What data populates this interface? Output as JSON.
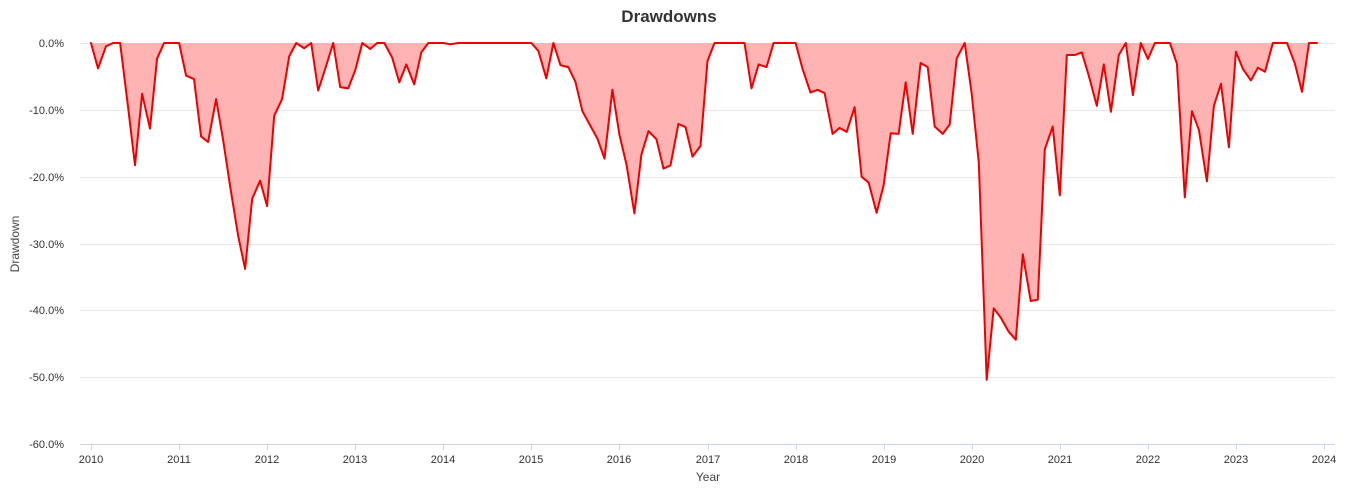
{
  "chart_data": {
    "type": "area",
    "title": "Drawdowns",
    "xlabel": "Year",
    "ylabel": "Drawdown",
    "xlim": [
      2010,
      2024
    ],
    "ylim": [
      -60,
      0
    ],
    "x_ticks": [
      2010,
      2011,
      2012,
      2013,
      2014,
      2015,
      2016,
      2017,
      2018,
      2019,
      2020,
      2021,
      2022,
      2023,
      2024
    ],
    "x_tick_labels": [
      "2010",
      "2011",
      "2012",
      "2013",
      "2014",
      "2015",
      "2016",
      "2017",
      "2018",
      "2019",
      "2020",
      "2021",
      "2022",
      "2023",
      "2024"
    ],
    "y_ticks": [
      0,
      -10,
      -20,
      -30,
      -40,
      -50,
      -60
    ],
    "y_tick_labels": [
      "0.0%",
      "-10.0%",
      "-20.0%",
      "-30.0%",
      "-40.0%",
      "-50.0%",
      "-60.0%"
    ],
    "grid": true,
    "legend": "none",
    "colors": {
      "line": "#ee0000",
      "fill": "#ffb3b3"
    },
    "series": [
      {
        "values": [
          [
            2010.0,
            0.0
          ],
          [
            2010.08,
            -3.8
          ],
          [
            2010.17,
            -0.5
          ],
          [
            2010.25,
            0.0
          ],
          [
            2010.33,
            0.0
          ],
          [
            2010.42,
            -9.5
          ],
          [
            2010.5,
            -18.3
          ],
          [
            2010.58,
            -7.6
          ],
          [
            2010.67,
            -12.8
          ],
          [
            2010.75,
            -2.3
          ],
          [
            2010.83,
            0.0
          ],
          [
            2010.92,
            0.0
          ],
          [
            2011.0,
            0.0
          ],
          [
            2011.08,
            -4.9
          ],
          [
            2011.17,
            -5.4
          ],
          [
            2011.25,
            -14.0
          ],
          [
            2011.33,
            -14.8
          ],
          [
            2011.42,
            -8.4
          ],
          [
            2011.5,
            -14.5
          ],
          [
            2011.58,
            -21.5
          ],
          [
            2011.67,
            -28.8
          ],
          [
            2011.75,
            -33.8
          ],
          [
            2011.83,
            -23.3
          ],
          [
            2011.92,
            -20.6
          ],
          [
            2012.0,
            -24.4
          ],
          [
            2012.08,
            -10.9
          ],
          [
            2012.17,
            -8.4
          ],
          [
            2012.25,
            -2.0
          ],
          [
            2012.33,
            0.0
          ],
          [
            2012.42,
            -0.8
          ],
          [
            2012.5,
            0.0
          ],
          [
            2012.58,
            -7.1
          ],
          [
            2012.67,
            -3.4
          ],
          [
            2012.75,
            0.0
          ],
          [
            2012.83,
            -6.6
          ],
          [
            2012.92,
            -6.8
          ],
          [
            2013.0,
            -4.1
          ],
          [
            2013.08,
            0.0
          ],
          [
            2013.17,
            -0.9
          ],
          [
            2013.25,
            0.0
          ],
          [
            2013.33,
            0.0
          ],
          [
            2013.42,
            -2.2
          ],
          [
            2013.5,
            -5.9
          ],
          [
            2013.58,
            -3.2
          ],
          [
            2013.67,
            -6.2
          ],
          [
            2013.75,
            -1.4
          ],
          [
            2013.83,
            0.0
          ],
          [
            2013.92,
            0.0
          ],
          [
            2014.0,
            0.0
          ],
          [
            2014.08,
            -0.2
          ],
          [
            2014.17,
            0.0
          ],
          [
            2014.25,
            0.0
          ],
          [
            2014.5,
            0.0
          ],
          [
            2014.75,
            0.0
          ],
          [
            2015.0,
            0.0
          ],
          [
            2015.08,
            -1.2
          ],
          [
            2015.17,
            -5.3
          ],
          [
            2015.25,
            0.0
          ],
          [
            2015.33,
            -3.3
          ],
          [
            2015.42,
            -3.6
          ],
          [
            2015.5,
            -5.8
          ],
          [
            2015.58,
            -10.2
          ],
          [
            2015.67,
            -12.4
          ],
          [
            2015.75,
            -14.3
          ],
          [
            2015.83,
            -17.3
          ],
          [
            2015.92,
            -7.0
          ],
          [
            2016.0,
            -13.7
          ],
          [
            2016.08,
            -18.2
          ],
          [
            2016.17,
            -25.5
          ],
          [
            2016.25,
            -16.7
          ],
          [
            2016.33,
            -13.2
          ],
          [
            2016.42,
            -14.4
          ],
          [
            2016.5,
            -18.8
          ],
          [
            2016.58,
            -18.3
          ],
          [
            2016.67,
            -12.1
          ],
          [
            2016.75,
            -12.6
          ],
          [
            2016.83,
            -17.0
          ],
          [
            2016.92,
            -15.4
          ],
          [
            2017.0,
            -2.7
          ],
          [
            2017.08,
            0.0
          ],
          [
            2017.17,
            0.0
          ],
          [
            2017.25,
            0.0
          ],
          [
            2017.33,
            0.0
          ],
          [
            2017.42,
            0.0
          ],
          [
            2017.5,
            -6.8
          ],
          [
            2017.58,
            -3.2
          ],
          [
            2017.67,
            -3.6
          ],
          [
            2017.75,
            0.0
          ],
          [
            2017.83,
            0.0
          ],
          [
            2017.92,
            0.0
          ],
          [
            2018.0,
            0.0
          ],
          [
            2018.08,
            -3.9
          ],
          [
            2018.17,
            -7.4
          ],
          [
            2018.25,
            -7.0
          ],
          [
            2018.33,
            -7.5
          ],
          [
            2018.42,
            -13.6
          ],
          [
            2018.5,
            -12.7
          ],
          [
            2018.58,
            -13.3
          ],
          [
            2018.67,
            -9.6
          ],
          [
            2018.75,
            -20.0
          ],
          [
            2018.83,
            -20.9
          ],
          [
            2018.92,
            -25.4
          ],
          [
            2019.0,
            -21.3
          ],
          [
            2019.08,
            -13.5
          ],
          [
            2019.17,
            -13.6
          ],
          [
            2019.25,
            -5.9
          ],
          [
            2019.33,
            -13.6
          ],
          [
            2019.42,
            -3.0
          ],
          [
            2019.5,
            -3.6
          ],
          [
            2019.58,
            -12.5
          ],
          [
            2019.67,
            -13.6
          ],
          [
            2019.75,
            -12.2
          ],
          [
            2019.83,
            -2.3
          ],
          [
            2019.92,
            0.0
          ],
          [
            2020.0,
            -7.6
          ],
          [
            2020.08,
            -17.9
          ],
          [
            2020.17,
            -50.4
          ],
          [
            2020.25,
            -39.7
          ],
          [
            2020.33,
            -41.1
          ],
          [
            2020.42,
            -43.2
          ],
          [
            2020.5,
            -44.4
          ],
          [
            2020.58,
            -31.6
          ],
          [
            2020.67,
            -38.6
          ],
          [
            2020.75,
            -38.4
          ],
          [
            2020.83,
            -15.9
          ],
          [
            2020.92,
            -12.5
          ],
          [
            2021.0,
            -22.8
          ],
          [
            2021.08,
            -1.8
          ],
          [
            2021.17,
            -1.8
          ],
          [
            2021.25,
            -1.4
          ],
          [
            2021.33,
            -4.9
          ],
          [
            2021.42,
            -9.4
          ],
          [
            2021.5,
            -3.2
          ],
          [
            2021.58,
            -10.3
          ],
          [
            2021.67,
            -1.8
          ],
          [
            2021.75,
            0.0
          ],
          [
            2021.83,
            -7.8
          ],
          [
            2021.92,
            0.0
          ],
          [
            2022.0,
            -2.4
          ],
          [
            2022.08,
            0.0
          ],
          [
            2022.17,
            0.0
          ],
          [
            2022.25,
            0.0
          ],
          [
            2022.33,
            -3.1
          ],
          [
            2022.42,
            -23.1
          ],
          [
            2022.5,
            -10.2
          ],
          [
            2022.58,
            -13.0
          ],
          [
            2022.67,
            -20.7
          ],
          [
            2022.75,
            -9.4
          ],
          [
            2022.83,
            -6.1
          ],
          [
            2022.92,
            -15.6
          ],
          [
            2023.0,
            -1.3
          ],
          [
            2023.08,
            -3.9
          ],
          [
            2023.17,
            -5.6
          ],
          [
            2023.25,
            -3.7
          ],
          [
            2023.33,
            -4.3
          ],
          [
            2023.42,
            0.0
          ],
          [
            2023.5,
            0.0
          ],
          [
            2023.58,
            0.0
          ],
          [
            2023.67,
            -3.1
          ],
          [
            2023.75,
            -7.3
          ],
          [
            2023.83,
            0.0
          ],
          [
            2023.92,
            0.0
          ]
        ]
      }
    ]
  }
}
